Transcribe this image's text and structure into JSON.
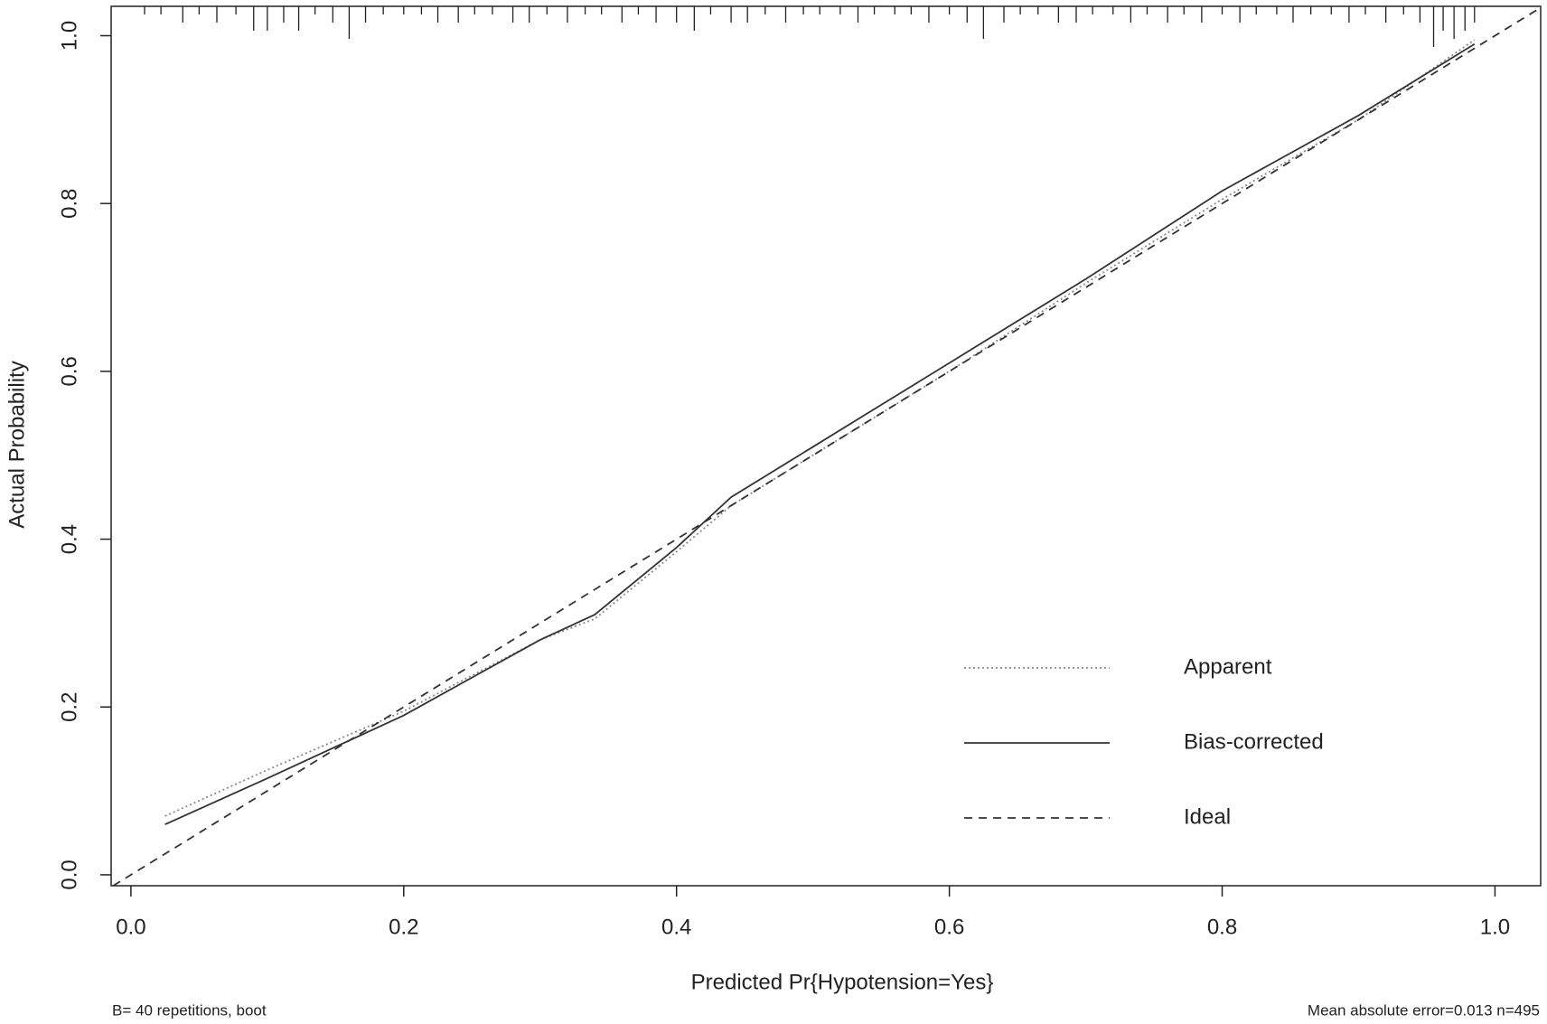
{
  "chart_data": {
    "type": "line",
    "x_label": "Predicted Pr{Hypotension=Yes}",
    "y_label": "Actual Probability",
    "footnote_left": "B= 40 repetitions, boot",
    "footnote_right": "Mean absolute error=0.013 n=495",
    "xlim": [
      -0.0145,
      1.0335
    ],
    "ylim": [
      -0.013,
      1.035
    ],
    "xticks": [
      {
        "value": 0,
        "label": "0.0"
      },
      0.2,
      0.4,
      0.6,
      0.8,
      {
        "value": 1,
        "label": "1.0"
      }
    ],
    "yticks": [
      {
        "value": 0,
        "label": "0.0"
      },
      0.2,
      0.4,
      0.6,
      0.8,
      {
        "value": 1,
        "label": "1.0"
      }
    ],
    "grid": false,
    "legend": "bottom-right",
    "series": [
      {
        "name": "Apparent",
        "color": "#8a8a8a",
        "dash": "dotted",
        "x": [
          0.025,
          0.1,
          0.2,
          0.3,
          0.34,
          0.4,
          0.44,
          0.5,
          0.54,
          0.6,
          0.7,
          0.8,
          0.9,
          0.985
        ],
        "values": [
          0.07,
          0.125,
          0.195,
          0.28,
          0.305,
          0.385,
          0.44,
          0.5,
          0.54,
          0.6,
          0.705,
          0.805,
          0.9,
          0.995
        ]
      },
      {
        "name": "Bias-corrected",
        "color": "#333333",
        "dash": "solid",
        "x": [
          0.025,
          0.1,
          0.2,
          0.3,
          0.34,
          0.4,
          0.44,
          0.5,
          0.54,
          0.6,
          0.7,
          0.8,
          0.9,
          0.985
        ],
        "values": [
          0.06,
          0.115,
          0.19,
          0.28,
          0.31,
          0.39,
          0.45,
          0.51,
          0.55,
          0.61,
          0.71,
          0.815,
          0.905,
          0.99
        ]
      },
      {
        "name": "Ideal",
        "color": "#333333",
        "dash": "dashed",
        "x": [
          -0.013,
          1.033
        ],
        "values": [
          -0.013,
          1.033
        ]
      }
    ],
    "rug": {
      "x": [
        0.01,
        0.022,
        0.038,
        0.05,
        0.063,
        0.077,
        0.09,
        0.1,
        0.112,
        0.123,
        0.135,
        0.148,
        0.16,
        0.172,
        0.185,
        0.2,
        0.213,
        0.225,
        0.24,
        0.252,
        0.265,
        0.28,
        0.292,
        0.305,
        0.32,
        0.333,
        0.345,
        0.36,
        0.372,
        0.385,
        0.4,
        0.413,
        0.425,
        0.44,
        0.452,
        0.465,
        0.48,
        0.493,
        0.505,
        0.52,
        0.533,
        0.545,
        0.56,
        0.572,
        0.585,
        0.6,
        0.613,
        0.625,
        0.64,
        0.652,
        0.665,
        0.68,
        0.693,
        0.705,
        0.72,
        0.733,
        0.745,
        0.76,
        0.772,
        0.785,
        0.8,
        0.813,
        0.825,
        0.84,
        0.852,
        0.865,
        0.88,
        0.893,
        0.905,
        0.92,
        0.933,
        0.945,
        0.955,
        0.962,
        0.97,
        0.978,
        0.985
      ],
      "counts": [
        1,
        1,
        2,
        1,
        2,
        1,
        3,
        3,
        2,
        3,
        1,
        2,
        4,
        2,
        1,
        1,
        1,
        2,
        2,
        1,
        1,
        2,
        2,
        1,
        2,
        1,
        1,
        2,
        1,
        2,
        2,
        3,
        1,
        2,
        2,
        1,
        2,
        1,
        1,
        1,
        2,
        1,
        1,
        1,
        2,
        1,
        2,
        4,
        2,
        1,
        1,
        2,
        2,
        1,
        1,
        2,
        1,
        2,
        1,
        2,
        1,
        2,
        1,
        1,
        2,
        1,
        1,
        2,
        1,
        2,
        1,
        2,
        5,
        3,
        4,
        3,
        2
      ]
    }
  }
}
